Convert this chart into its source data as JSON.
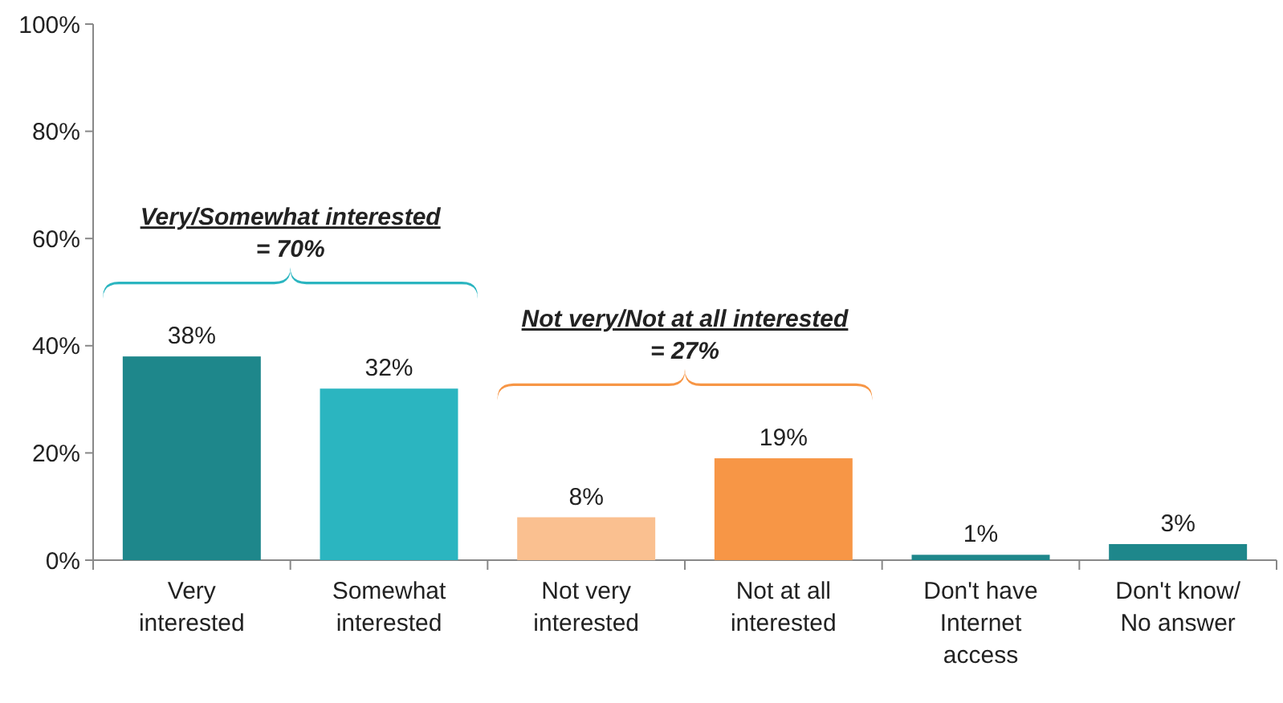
{
  "chart_data": {
    "type": "bar",
    "categories": [
      "Very interested",
      "Somewhat interested",
      "Not very interested",
      "Not at all interested",
      "Don't have Internet access",
      "Don't know/ No answer"
    ],
    "values": [
      38,
      32,
      8,
      19,
      1,
      3
    ],
    "colors": [
      "#1e878b",
      "#2bb5c0",
      "#fac090",
      "#f79646",
      "#1e878b",
      "#1e878b"
    ],
    "value_labels": [
      "38%",
      "32%",
      "8%",
      "19%",
      "1%",
      "3%"
    ],
    "ylim": [
      0,
      100
    ],
    "yticks": [
      {
        "value": 0,
        "label": "0%"
      },
      {
        "value": 20,
        "label": "20%"
      },
      {
        "value": 40,
        "label": "40%"
      },
      {
        "value": 60,
        "label": "60%"
      },
      {
        "value": 80,
        "label": "80%"
      },
      {
        "value": 100,
        "label": "100%"
      }
    ],
    "grid": false,
    "annotations": [
      "Very/Somewhat interested\n= 70%",
      "Not very/Not at all interested\n= 27%"
    ]
  }
}
